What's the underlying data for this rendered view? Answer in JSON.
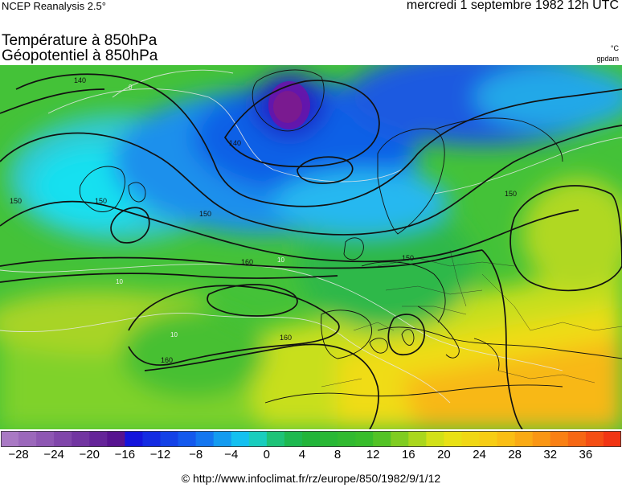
{
  "header": {
    "source": "NCEP Reanalysis 2.5°",
    "datetime": "mercredi 1 septembre 1982 12h UTC"
  },
  "titles": {
    "line1": "Température à 850hPa",
    "line2": "Géopotentiel à 850hPa"
  },
  "units": {
    "temperature": "°C",
    "geopotential": "gpdam"
  },
  "map": {
    "region": "europe",
    "contour_labels": [
      "140",
      "140",
      "150",
      "150",
      "150",
      "150",
      "150",
      "160",
      "160",
      "160"
    ],
    "isotherm_labels": [
      "0",
      "10",
      "10",
      "10"
    ]
  },
  "colorbar": {
    "min": -30,
    "max": 40,
    "step": 2,
    "tick_values": [
      -28,
      -24,
      -20,
      -16,
      -12,
      -8,
      -4,
      0,
      4,
      8,
      12,
      16,
      20,
      24,
      28,
      32,
      36
    ],
    "tick_labels": [
      "−28",
      "−24",
      "−20",
      "−16",
      "−12",
      "−8",
      "−4",
      "0",
      "4",
      "8",
      "12",
      "16",
      "20",
      "24",
      "28",
      "32",
      "36"
    ]
  },
  "footer": {
    "credit": "© http://www.infoclimat.fr/rz/europe/850/1982/9/1/12"
  }
}
